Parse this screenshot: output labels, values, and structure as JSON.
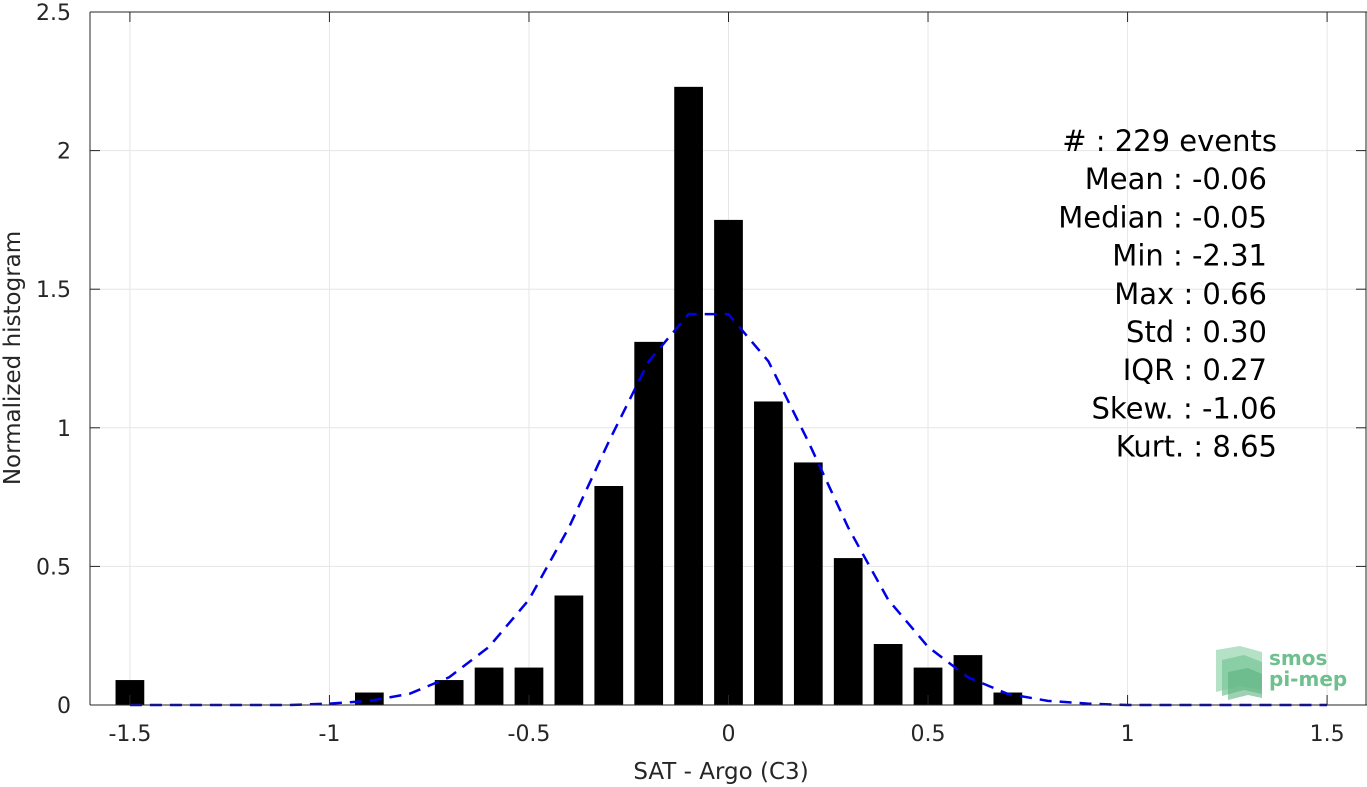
{
  "chart_data": {
    "type": "bar",
    "xlabel": "SAT - Argo (C3)",
    "ylabel": "Normalized histogram",
    "xlim": [
      -1.6,
      1.6
    ],
    "ylim": [
      0,
      2.5
    ],
    "grid": true,
    "xticks": [
      -1.5,
      -1,
      -0.5,
      0,
      0.5,
      1,
      1.5
    ],
    "xtick_labels": [
      "-1.5",
      "-1",
      "-0.5",
      "0",
      "0.5",
      "1",
      "1.5"
    ],
    "yticks": [
      0,
      0.5,
      1,
      1.5,
      2,
      2.5
    ],
    "ytick_labels": [
      "0",
      "0.5",
      "1",
      "1.5",
      "2",
      "2.5"
    ],
    "bin_width": 0.1,
    "bars": [
      {
        "x": -1.5,
        "value": 0.09
      },
      {
        "x": -0.9,
        "value": 0.045
      },
      {
        "x": -0.7,
        "value": 0.09
      },
      {
        "x": -0.6,
        "value": 0.135
      },
      {
        "x": -0.5,
        "value": 0.135
      },
      {
        "x": -0.4,
        "value": 0.395
      },
      {
        "x": -0.3,
        "value": 0.79
      },
      {
        "x": -0.2,
        "value": 1.31
      },
      {
        "x": -0.1,
        "value": 2.23
      },
      {
        "x": 0.0,
        "value": 1.75
      },
      {
        "x": 0.1,
        "value": 1.095
      },
      {
        "x": 0.2,
        "value": 0.875
      },
      {
        "x": 0.3,
        "value": 0.53
      },
      {
        "x": 0.4,
        "value": 0.22
      },
      {
        "x": 0.5,
        "value": 0.135
      },
      {
        "x": 0.6,
        "value": 0.18
      },
      {
        "x": 0.7,
        "value": 0.045
      }
    ],
    "fit_curve": {
      "style": "dashed",
      "color": "#0000e6",
      "x": [
        -1.5,
        -1.4,
        -1.3,
        -1.2,
        -1.1,
        -1.0,
        -0.9,
        -0.8,
        -0.7,
        -0.6,
        -0.5,
        -0.4,
        -0.3,
        -0.2,
        -0.1,
        0.0,
        0.1,
        0.2,
        0.3,
        0.4,
        0.5,
        0.6,
        0.7,
        0.8,
        0.9,
        1.0,
        1.1,
        1.2,
        1.3,
        1.4,
        1.5
      ],
      "y": [
        0.0,
        0.0,
        0.0,
        0.0,
        0.0,
        0.005,
        0.015,
        0.04,
        0.1,
        0.21,
        0.38,
        0.64,
        0.95,
        1.24,
        1.41,
        1.41,
        1.24,
        0.95,
        0.64,
        0.38,
        0.21,
        0.1,
        0.04,
        0.015,
        0.005,
        0.0,
        0.0,
        0.0,
        0.0,
        0.0,
        0.0
      ]
    },
    "stats": [
      {
        "label": "#  : 229 events",
        "value": ""
      },
      {
        "label": "Mean : ",
        "value": "-0.06"
      },
      {
        "label": "Median : ",
        "value": "-0.05"
      },
      {
        "label": "Min : ",
        "value": "-2.31"
      },
      {
        "label": "Max : ",
        "value": "0.66"
      },
      {
        "label": "Std : ",
        "value": "0.30"
      },
      {
        "label": "IQR : ",
        "value": "0.27"
      },
      {
        "label": "Skew. : ",
        "value": "-1.06"
      },
      {
        "label": "Kurt. : ",
        "value": "8.65"
      }
    ],
    "bar_color": "#000000",
    "grid_color": "#e6e6e6"
  },
  "logo": {
    "line1": "smos",
    "line2": "pi-mep",
    "color": "#6fbf8f"
  }
}
